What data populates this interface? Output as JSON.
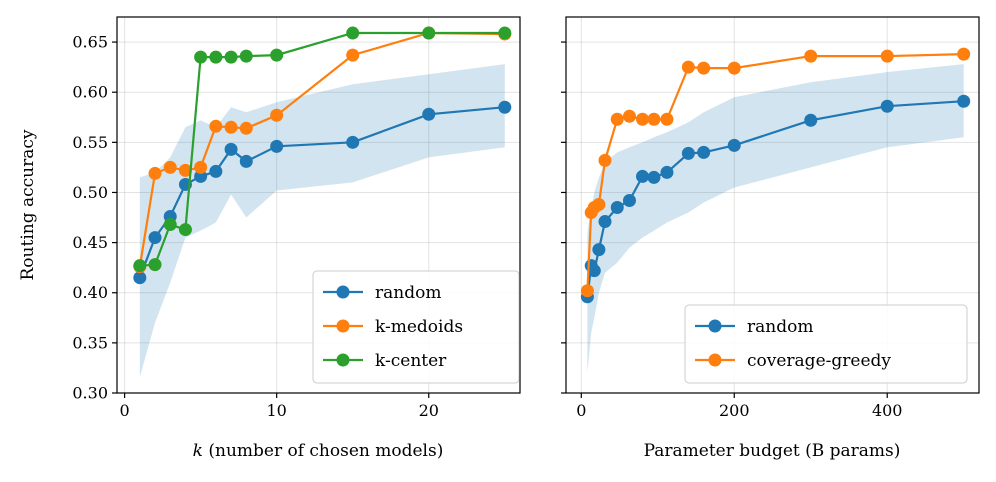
{
  "chart_data": [
    {
      "type": "line",
      "xlabel_prefix": "k",
      "xlabel": " (number of chosen models)",
      "ylabel": "Routing accuracy",
      "xlim": [
        -0.5,
        26.0
      ],
      "ylim": [
        0.3,
        0.675
      ],
      "xticks": [
        0,
        10,
        20
      ],
      "yticks": [
        0.3,
        0.35,
        0.4,
        0.45,
        0.5,
        0.55,
        0.6,
        0.65
      ],
      "grid": true,
      "legend_position": "lower-right",
      "band": {
        "color": "#1f77b4",
        "x": [
          1,
          2,
          3,
          4,
          5,
          6,
          7,
          8,
          10,
          15,
          20,
          25
        ],
        "lower": [
          0.316,
          0.37,
          0.41,
          0.455,
          0.462,
          0.47,
          0.498,
          0.475,
          0.502,
          0.51,
          0.535,
          0.545
        ],
        "upper": [
          0.515,
          0.52,
          0.535,
          0.565,
          0.572,
          0.565,
          0.585,
          0.58,
          0.59,
          0.608,
          0.618,
          0.628
        ]
      },
      "series": [
        {
          "name": "random",
          "color": "#1f77b4",
          "x": [
            1,
            2,
            3,
            4,
            5,
            6,
            7,
            8,
            10,
            15,
            20,
            25
          ],
          "values": [
            0.415,
            0.455,
            0.476,
            0.508,
            0.516,
            0.521,
            0.543,
            0.531,
            0.546,
            0.55,
            0.578,
            0.585
          ]
        },
        {
          "name": "k-medoids",
          "color": "#ff7f0e",
          "x": [
            1,
            2,
            3,
            4,
            5,
            6,
            7,
            8,
            10,
            15,
            20,
            25
          ],
          "values": [
            0.426,
            0.519,
            0.525,
            0.522,
            0.525,
            0.566,
            0.565,
            0.564,
            0.577,
            0.637,
            0.659,
            0.658
          ]
        },
        {
          "name": "k-center",
          "color": "#2ca02c",
          "x": [
            1,
            2,
            3,
            4,
            5,
            6,
            7,
            8,
            10,
            15,
            20,
            25
          ],
          "values": [
            0.427,
            0.428,
            0.468,
            0.463,
            0.635,
            0.635,
            0.635,
            0.636,
            0.637,
            0.659,
            0.659,
            0.659
          ]
        }
      ]
    },
    {
      "type": "line",
      "xlabel": "Parameter budget (B params)",
      "ylabel": "",
      "xlim": [
        -20,
        520
      ],
      "ylim": [
        0.3,
        0.675
      ],
      "xticks": [
        0,
        200,
        400
      ],
      "yticks": [
        0.3,
        0.35,
        0.4,
        0.45,
        0.5,
        0.55,
        0.6,
        0.65
      ],
      "grid": true,
      "legend_position": "lower-right",
      "band": {
        "color": "#1f77b4",
        "x": [
          8,
          13,
          17,
          23,
          31,
          47,
          63,
          80,
          95,
          112,
          140,
          160,
          200,
          300,
          400,
          500
        ],
        "lower": [
          0.32,
          0.36,
          0.375,
          0.4,
          0.42,
          0.43,
          0.445,
          0.455,
          0.462,
          0.47,
          0.48,
          0.49,
          0.505,
          0.525,
          0.545,
          0.555
        ],
        "upper": [
          0.46,
          0.485,
          0.5,
          0.515,
          0.53,
          0.54,
          0.545,
          0.55,
          0.555,
          0.56,
          0.57,
          0.58,
          0.595,
          0.61,
          0.62,
          0.628
        ]
      },
      "series": [
        {
          "name": "random",
          "color": "#1f77b4",
          "x": [
            8,
            13,
            17,
            23,
            31,
            47,
            63,
            80,
            95,
            112,
            140,
            160,
            200,
            300,
            400,
            500
          ],
          "values": [
            0.396,
            0.427,
            0.422,
            0.443,
            0.471,
            0.485,
            0.492,
            0.516,
            0.515,
            0.52,
            0.539,
            0.54,
            0.547,
            0.572,
            0.586,
            0.591
          ]
        },
        {
          "name": "coverage-greedy",
          "color": "#ff7f0e",
          "x": [
            8,
            13,
            17,
            23,
            31,
            47,
            63,
            80,
            95,
            112,
            140,
            160,
            200,
            300,
            400,
            500
          ],
          "values": [
            0.402,
            0.48,
            0.485,
            0.488,
            0.532,
            0.573,
            0.576,
            0.573,
            0.573,
            0.573,
            0.625,
            0.624,
            0.624,
            0.636,
            0.636,
            0.638
          ]
        }
      ]
    }
  ]
}
